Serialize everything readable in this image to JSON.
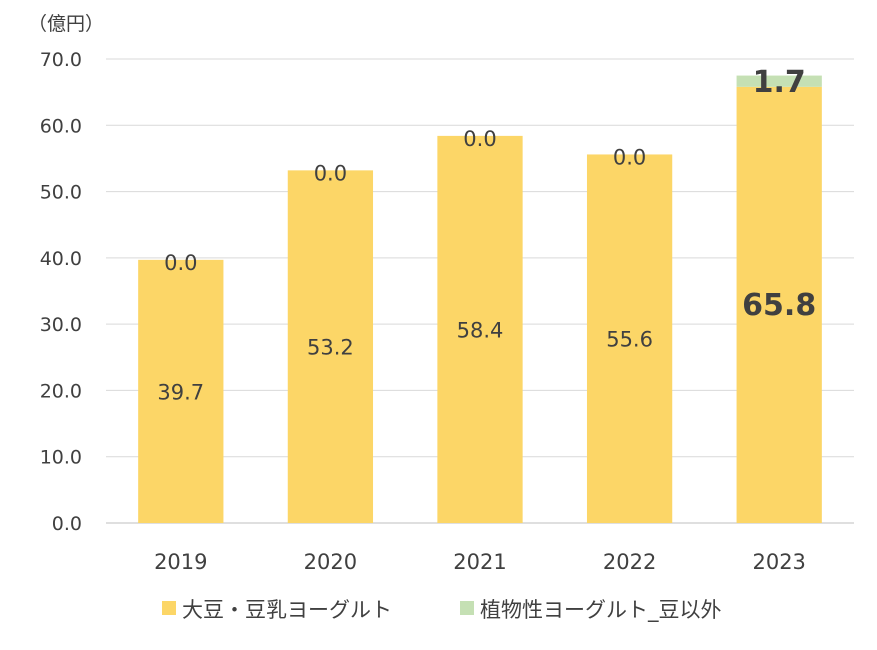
{
  "chart_data": {
    "type": "bar",
    "stacked": true,
    "unit_label": "（億円）",
    "categories": [
      "2019",
      "2020",
      "2021",
      "2022",
      "2023"
    ],
    "series": [
      {
        "name": "大豆・豆乳ヨーグルト",
        "color": "#FCD667",
        "values": [
          39.7,
          53.2,
          58.4,
          55.6,
          65.8
        ],
        "labels": [
          "39.7",
          "53.2",
          "58.4",
          "55.6",
          "65.8"
        ]
      },
      {
        "name": "植物性ヨーグルト_豆以外",
        "color": "#C5E0B4",
        "values": [
          0.0,
          0.0,
          0.0,
          0.0,
          1.7
        ],
        "labels": [
          "0.0",
          "0.0",
          "0.0",
          "0.0",
          "1.7"
        ]
      }
    ],
    "y_ticks": [
      "0.0",
      "10.0",
      "20.0",
      "30.0",
      "40.0",
      "50.0",
      "60.0",
      "70.0"
    ],
    "ylim": [
      0,
      70
    ],
    "grid": true,
    "legend_position": "bottom",
    "emphasized_category": "2023"
  }
}
